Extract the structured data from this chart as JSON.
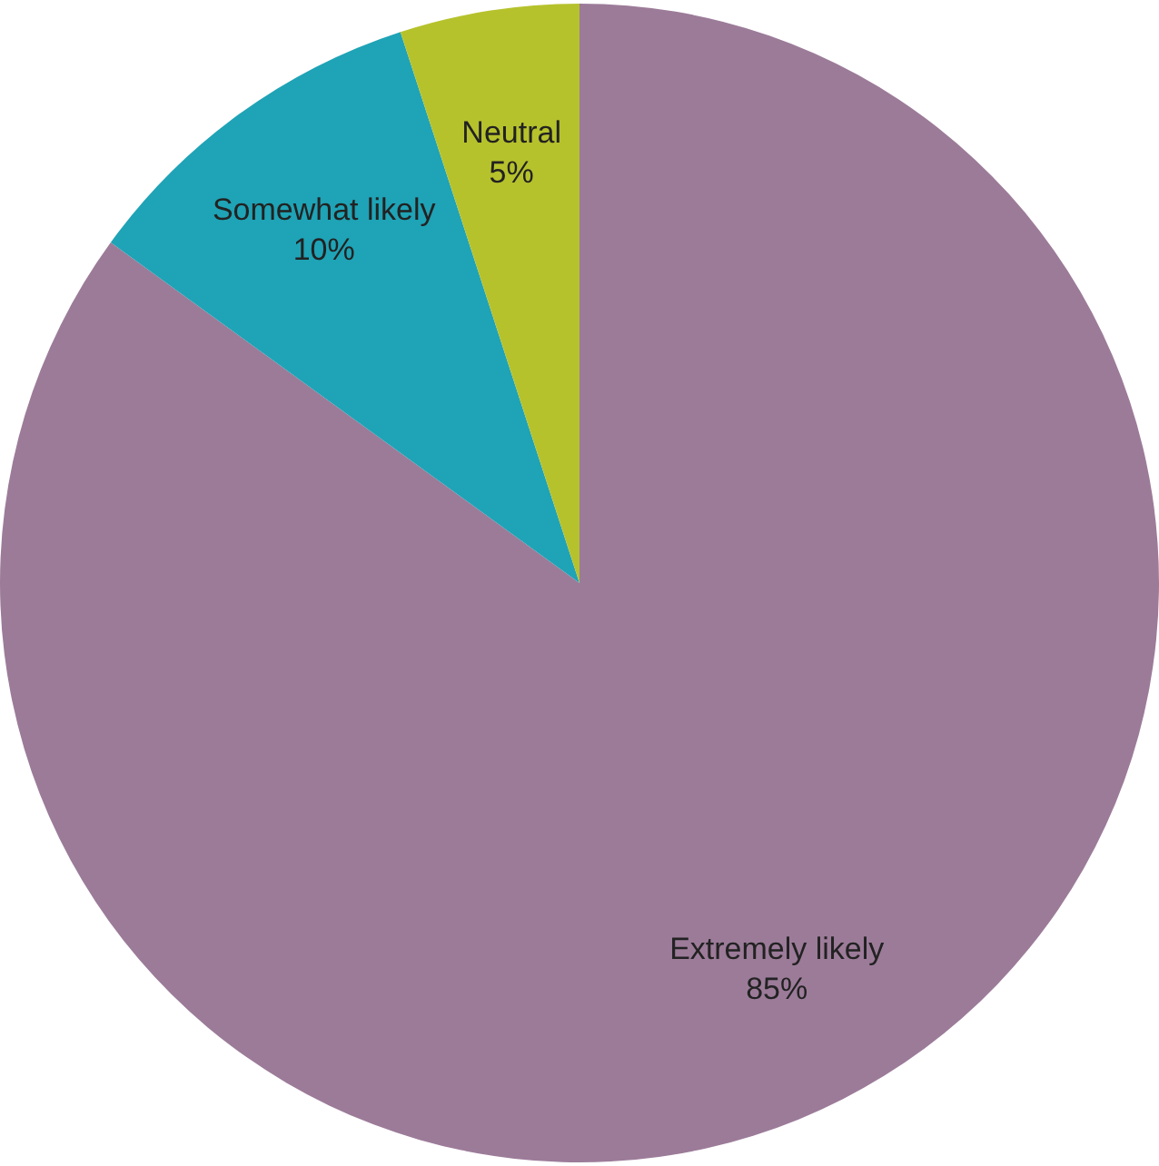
{
  "chart_data": {
    "type": "pie",
    "categories": [
      "Extremely likely",
      "Somewhat likely",
      "Neutral"
    ],
    "values": [
      85,
      10,
      5
    ],
    "colors": [
      "#9c7b99",
      "#1fa3b6",
      "#b6c22c"
    ],
    "value_labels": [
      "85%",
      "10%",
      "5%"
    ],
    "legend": false
  }
}
